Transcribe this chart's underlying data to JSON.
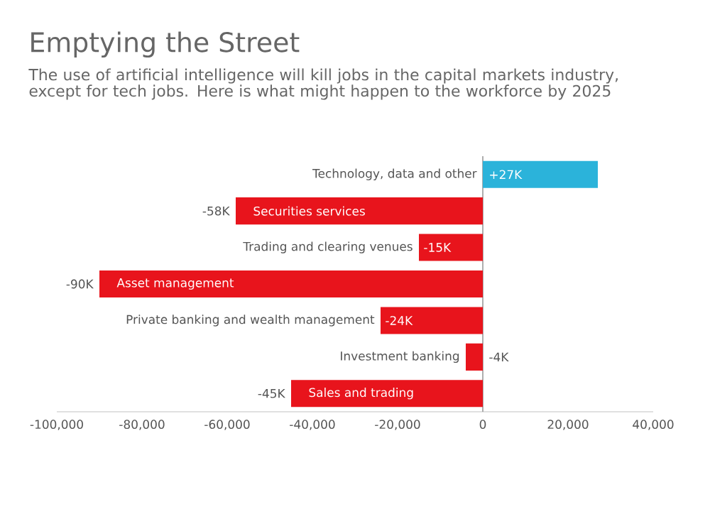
{
  "chart_data": {
    "type": "bar",
    "orientation": "horizontal",
    "title": "Emptying the Street",
    "subtitle": "The use of artificial intelligence will kill jobs in the capital markets industry, except for tech jobs. Here is what might happen to the workforce by 2025",
    "categories": [
      "Technology, data and other",
      "Securities services",
      "Trading and clearing venues",
      "Asset management",
      "Private banking and wealth management",
      "Investment banking",
      "Sales and trading"
    ],
    "values": [
      27000,
      -58000,
      -15000,
      -90000,
      -24000,
      -4000,
      -45000
    ],
    "value_labels": [
      "+27K",
      "-58K",
      "-15K",
      "-90K",
      "-24K",
      "-4K",
      "-45K"
    ],
    "colors": [
      "#2bb3da",
      "#e8141c",
      "#e8141c",
      "#e8141c",
      "#e8141c",
      "#e8141c",
      "#e8141c"
    ],
    "xlim": [
      -100000,
      40000
    ],
    "xticks": [
      {
        "value": -100000,
        "label": "-100,000"
      },
      {
        "value": -80000,
        "label": "-80,000"
      },
      {
        "value": -60000,
        "label": "-60,000"
      },
      {
        "value": -40000,
        "label": "-40,000"
      },
      {
        "value": -20000,
        "label": "-20,000"
      },
      0,
      {
        "value": 20000,
        "label": "20,000"
      },
      {
        "value": 40000,
        "label": "40,000"
      }
    ],
    "grid": false
  }
}
